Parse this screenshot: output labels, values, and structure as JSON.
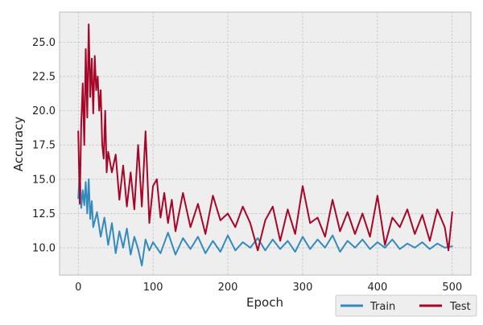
{
  "chart_data": {
    "type": "line",
    "title": "",
    "xlabel": "Epoch",
    "ylabel": "Accuracy",
    "xlim": [
      -25,
      525
    ],
    "ylim": [
      8.0,
      27.2
    ],
    "xticks": [
      0,
      100,
      200,
      300,
      400,
      500
    ],
    "xtick_labels": [
      "0",
      "100",
      "200",
      "300",
      "400",
      "500"
    ],
    "yticks": [
      10.0,
      12.5,
      15.0,
      17.5,
      20.0,
      22.5,
      25.0
    ],
    "ytick_labels": [
      "10.0",
      "12.5",
      "15.0",
      "17.5",
      "20.0",
      "22.5",
      "25.0"
    ],
    "grid": true,
    "legend": {
      "placement": "bottom-right outside",
      "ncol": 2
    },
    "series": [
      {
        "name": "Train",
        "color": "#348abd",
        "x": [
          0,
          2,
          4,
          6,
          8,
          10,
          12,
          14,
          16,
          18,
          20,
          25,
          30,
          35,
          40,
          45,
          50,
          55,
          60,
          65,
          70,
          75,
          80,
          85,
          90,
          95,
          100,
          110,
          120,
          130,
          140,
          150,
          160,
          170,
          180,
          190,
          200,
          210,
          220,
          230,
          240,
          250,
          260,
          270,
          280,
          290,
          300,
          310,
          320,
          330,
          340,
          350,
          360,
          370,
          380,
          390,
          400,
          410,
          420,
          430,
          440,
          450,
          460,
          470,
          480,
          490,
          500
        ],
        "y": [
          13.6,
          15.5,
          12.9,
          14.2,
          13.1,
          14.8,
          12.5,
          15.0,
          12.1,
          13.4,
          11.5,
          12.6,
          10.8,
          12.2,
          10.2,
          11.8,
          9.6,
          11.2,
          10.0,
          11.4,
          9.5,
          10.8,
          9.9,
          8.7,
          10.6,
          9.8,
          10.4,
          9.6,
          11.1,
          9.5,
          10.7,
          9.9,
          10.8,
          9.6,
          10.5,
          9.7,
          10.9,
          9.8,
          10.4,
          10.0,
          10.7,
          9.8,
          10.6,
          9.9,
          10.5,
          9.7,
          10.8,
          9.9,
          10.6,
          10.0,
          10.9,
          9.7,
          10.5,
          10.0,
          10.6,
          9.9,
          10.4,
          10.0,
          10.6,
          9.9,
          10.3,
          10.0,
          10.4,
          9.9,
          10.3,
          10.0,
          10.1
        ]
      },
      {
        "name": "Test",
        "color": "#a60628",
        "x": [
          0,
          2,
          4,
          6,
          8,
          10,
          12,
          14,
          16,
          18,
          20,
          22,
          24,
          26,
          28,
          30,
          32,
          34,
          36,
          38,
          40,
          45,
          50,
          55,
          60,
          65,
          70,
          75,
          80,
          85,
          90,
          95,
          100,
          105,
          110,
          115,
          120,
          125,
          130,
          140,
          150,
          160,
          170,
          180,
          190,
          200,
          210,
          220,
          230,
          240,
          250,
          260,
          270,
          280,
          290,
          300,
          310,
          320,
          330,
          340,
          350,
          360,
          370,
          380,
          390,
          400,
          410,
          420,
          430,
          440,
          450,
          460,
          470,
          480,
          490,
          495,
          500
        ],
        "y": [
          18.5,
          13.2,
          19.0,
          22.0,
          17.5,
          24.5,
          19.5,
          26.3,
          21.0,
          23.8,
          19.8,
          24.0,
          21.5,
          22.5,
          20.0,
          21.5,
          17.5,
          16.5,
          20.0,
          15.5,
          17.0,
          15.5,
          16.8,
          13.5,
          16.0,
          13.0,
          15.5,
          12.8,
          17.5,
          13.0,
          18.5,
          11.8,
          14.5,
          15.0,
          12.2,
          14.0,
          11.8,
          13.5,
          11.2,
          14.0,
          11.5,
          13.2,
          11.0,
          13.8,
          12.0,
          12.5,
          11.5,
          13.0,
          11.8,
          9.8,
          12.0,
          13.0,
          10.5,
          12.8,
          11.0,
          14.5,
          11.8,
          12.2,
          10.8,
          13.5,
          11.2,
          12.6,
          11.0,
          12.5,
          10.8,
          13.8,
          10.2,
          12.2,
          11.5,
          12.8,
          11.0,
          12.4,
          10.5,
          12.8,
          11.5,
          9.8,
          12.6
        ]
      }
    ]
  }
}
